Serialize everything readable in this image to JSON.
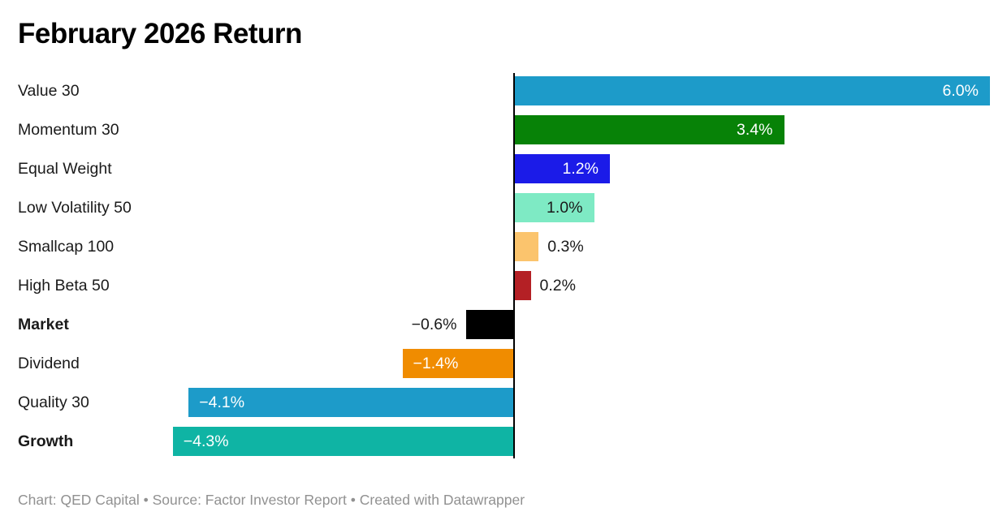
{
  "title": "February 2026 Return",
  "footer": "Chart: QED Capital • Source: Factor Investor Report • Created with Datawrapper",
  "chart_data": {
    "type": "bar",
    "orientation": "horizontal",
    "title": "February 2026 Return",
    "xlabel": "",
    "ylabel": "",
    "xlim": [
      -4.3,
      6.0
    ],
    "grid": false,
    "legend": false,
    "zero_line": true,
    "categories": [
      "Value 30",
      "Momentum 30",
      "Equal Weight",
      "Low Volatility 50",
      "Smallcap 100",
      "High Beta 50",
      "Market",
      "Dividend",
      "Quality 30",
      "Growth"
    ],
    "values": [
      6.0,
      3.4,
      1.2,
      1.0,
      0.3,
      0.2,
      -0.6,
      -1.4,
      -4.1,
      -4.3
    ],
    "labels": [
      "6.0%",
      "3.4%",
      "1.2%",
      "1.0%",
      "0.3%",
      "0.2%",
      "−0.6%",
      "−1.4%",
      "−4.1%",
      "−4.3%"
    ],
    "bold_categories": [
      false,
      false,
      false,
      false,
      false,
      false,
      true,
      false,
      false,
      true
    ],
    "colors": [
      "#1d9bc9",
      "#078207",
      "#1b1be8",
      "#7eeac4",
      "#fbc46d",
      "#b42025",
      "#000000",
      "#f08c00",
      "#1d9bc9",
      "#0fb4a4"
    ],
    "label_inside": [
      true,
      true,
      true,
      true,
      false,
      false,
      false,
      true,
      true,
      true
    ],
    "label_colors": [
      "#ffffff",
      "#ffffff",
      "#ffffff",
      "#1a1a1a",
      "#1a1a1a",
      "#1a1a1a",
      "#1a1a1a",
      "#ffffff",
      "#ffffff",
      "#ffffff"
    ]
  }
}
